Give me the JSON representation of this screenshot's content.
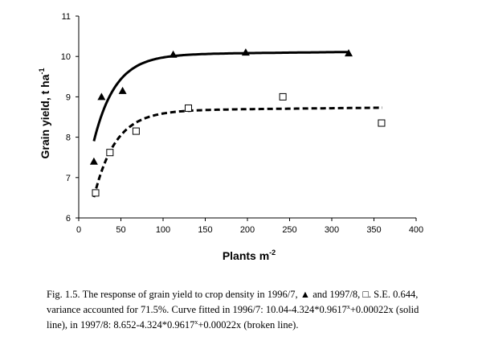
{
  "chart_data": {
    "type": "scatter",
    "title": "",
    "xlabel": "Plants m",
    "xlabel_sup": "-2",
    "ylabel": "Grain yield, t ha",
    "ylabel_sup": "-1",
    "xlim": [
      0,
      400
    ],
    "ylim": [
      6,
      11
    ],
    "xticks": [
      "0",
      "50",
      "100",
      "150",
      "200",
      "250",
      "300",
      "350",
      "400"
    ],
    "yticks": [
      "6",
      "7",
      "8",
      "9",
      "10",
      "11"
    ],
    "grid": false,
    "series": [
      {
        "marker": "triangle-filled",
        "line_style": "solid",
        "fit": {
          "a": 10.04,
          "b": 4.324,
          "r": 0.9617,
          "c": 0.00022,
          "x_range": [
            18,
            320
          ]
        },
        "x": [
          18,
          27,
          52,
          112,
          198,
          320
        ],
        "y": [
          7.4,
          9.0,
          9.15,
          10.05,
          10.1,
          10.08
        ]
      },
      {
        "marker": "square-open",
        "line_style": "dashed",
        "fit": {
          "a": 8.652,
          "b": 4.324,
          "r": 0.9617,
          "c": 0.00022,
          "x_range": [
            18,
            360
          ]
        },
        "x": [
          20,
          37,
          68,
          130,
          242,
          359
        ],
        "y": [
          6.62,
          7.62,
          8.15,
          8.72,
          9.0,
          8.35
        ]
      }
    ],
    "colors": {
      "line": "#000000",
      "marker": "#000000"
    }
  },
  "caption": {
    "line1_pre": "Fig. 1.5. The response of grain yield to crop density in 1996/7, ",
    "line1_triangle": "▲",
    "line1_mid": " and 1997/8, ",
    "line1_square": "□",
    "line1_post": ". S.E. 0.644,",
    "line2_pre": "variance accounted for  71.5%. Curve fitted in 1996/7: 10.04-4.324*0.9617",
    "line2_sup": "x",
    "line2_post": "+0.00022x (solid",
    "line3_pre": "line), in 1997/8: 8.652-4.324*0.9617",
    "line3_sup": "x",
    "line3_post": "+0.00022x (broken line)."
  }
}
